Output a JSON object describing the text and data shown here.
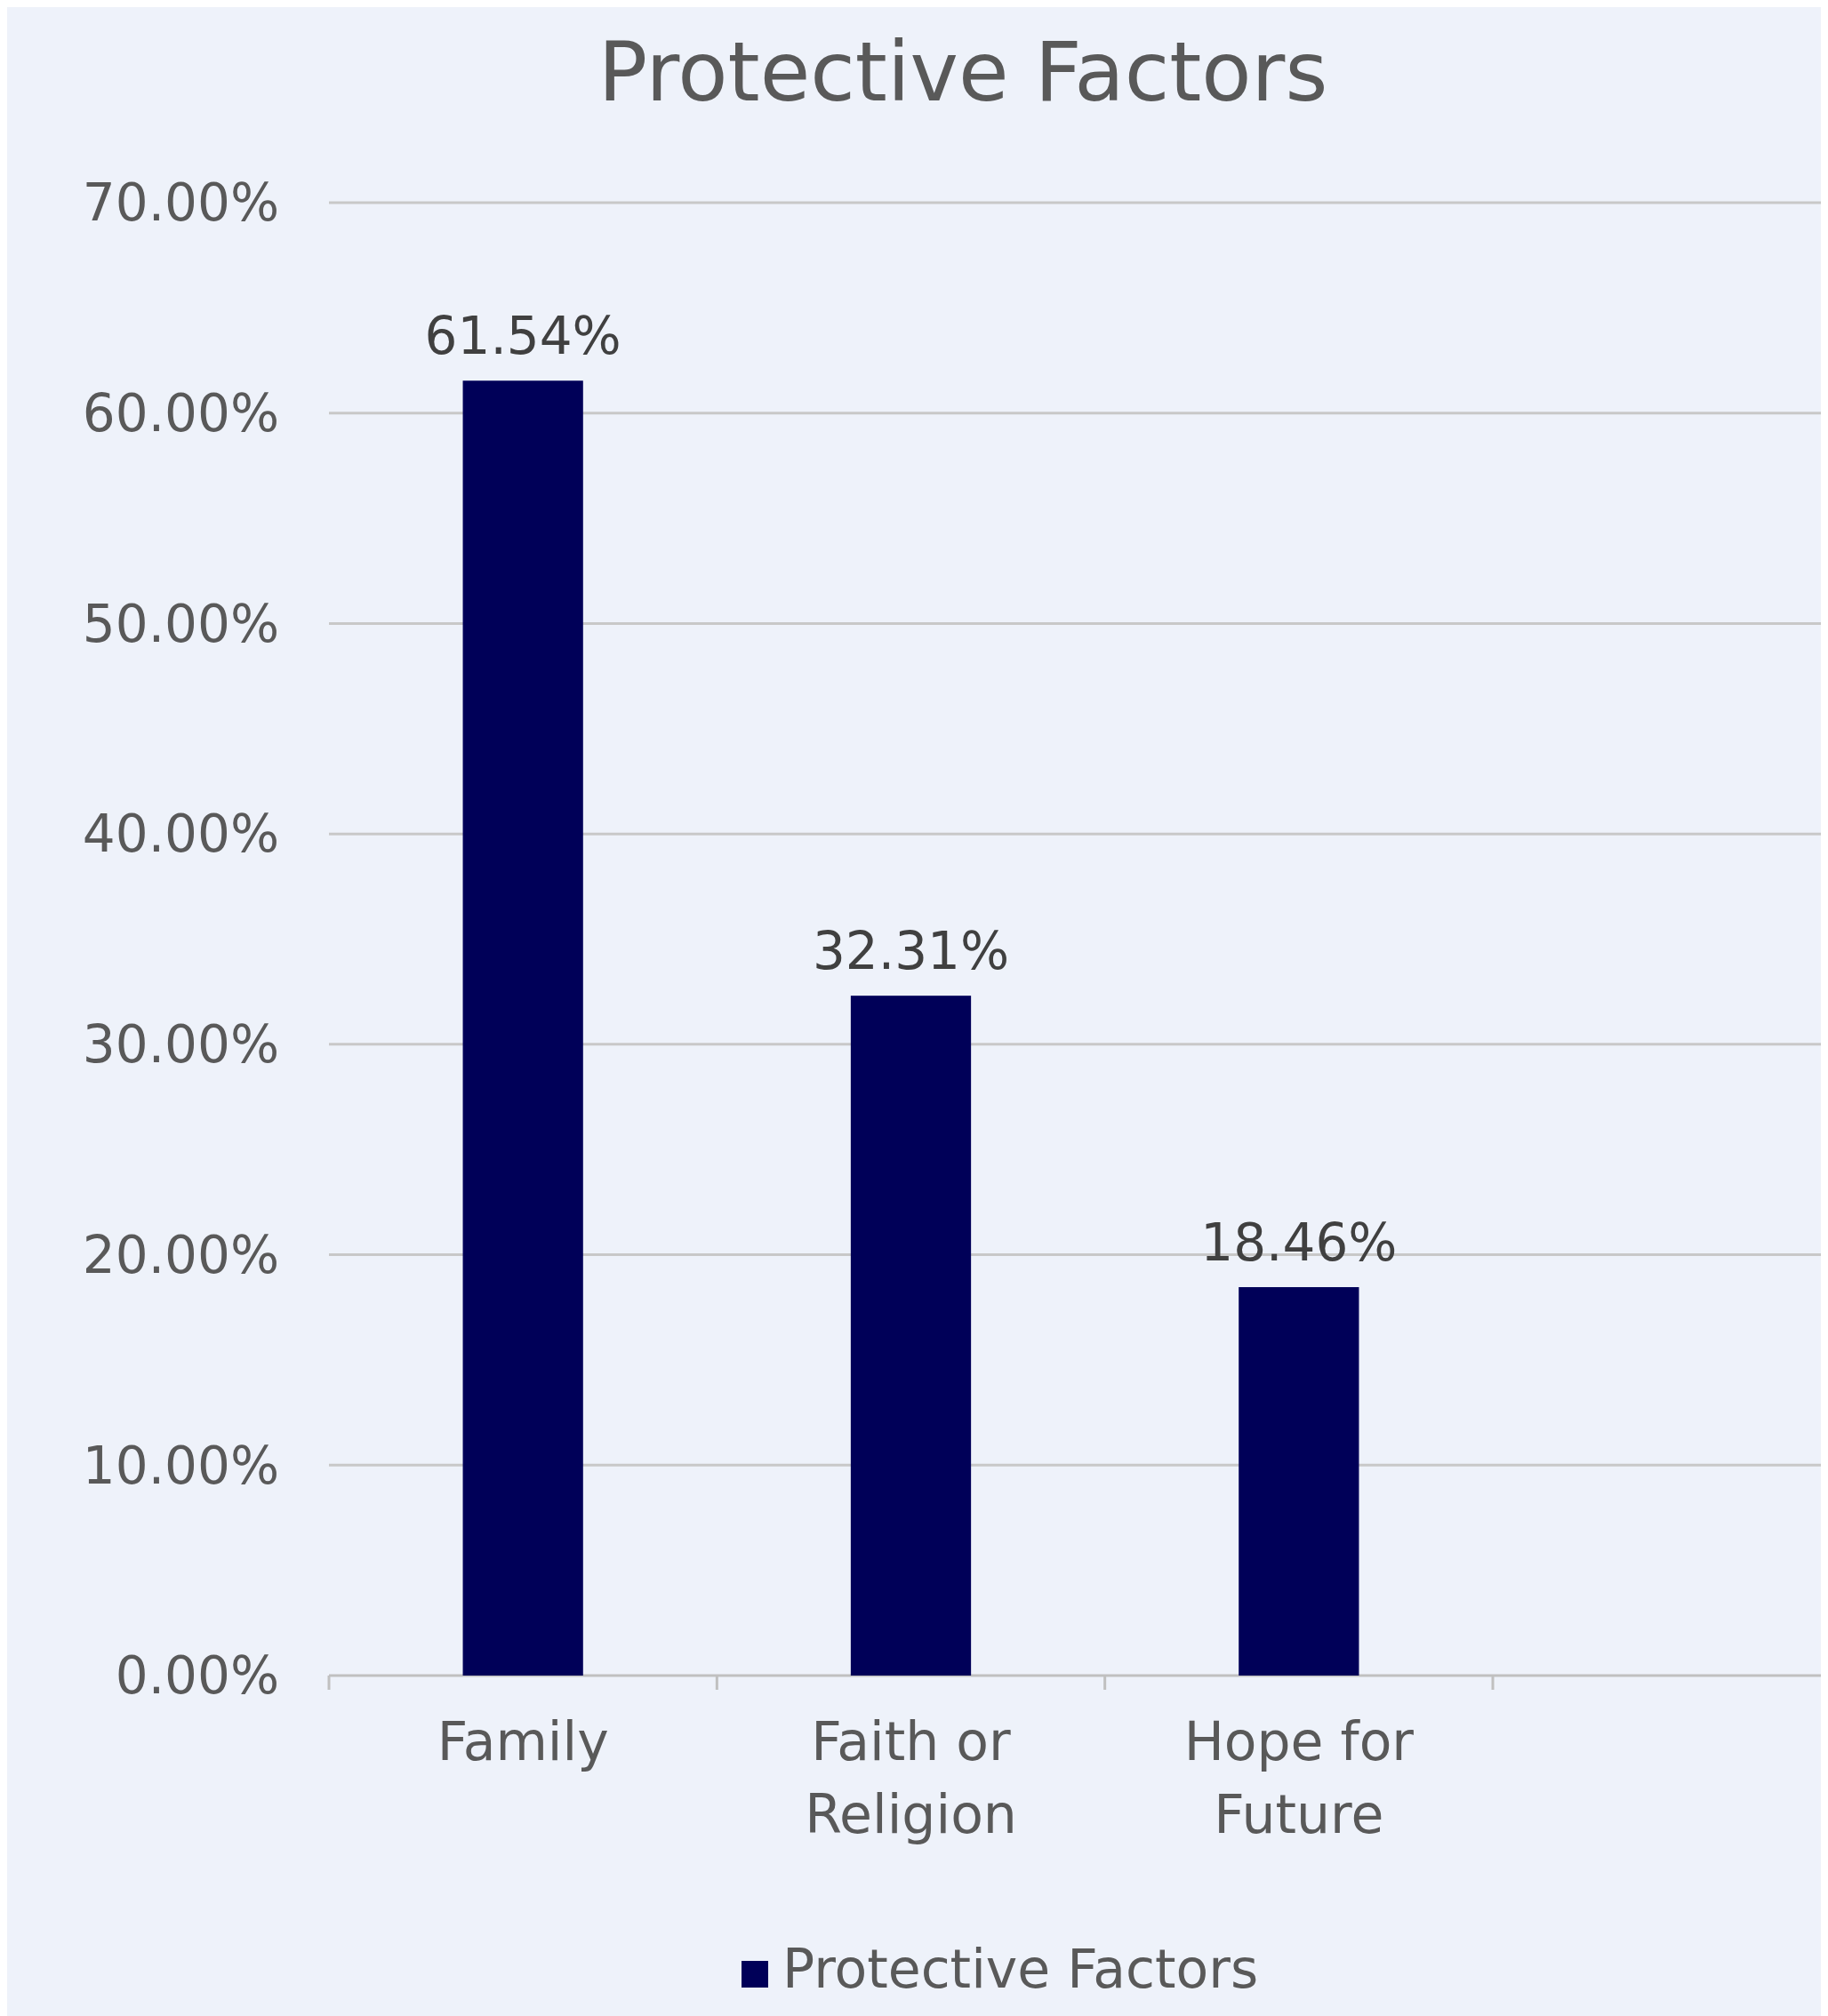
{
  "chart_data": {
    "type": "bar",
    "title": "Protective Factors",
    "categories": [
      "Family",
      "Faith or Religion",
      "Hope for Future"
    ],
    "series": [
      {
        "name": "Protective Factors",
        "color": "#000058",
        "values": [
          61.54,
          32.31,
          18.46
        ]
      }
    ],
    "value_labels": [
      "61.54%",
      "32.31%",
      "18.46%"
    ],
    "ylim": [
      0,
      70
    ],
    "yticks": [
      {
        "value": 0,
        "label": "0.00%"
      },
      {
        "value": 10,
        "label": "10.00%"
      },
      {
        "value": 20,
        "label": "20.00%"
      },
      {
        "value": 30,
        "label": "30.00%"
      },
      {
        "value": 40,
        "label": "40.00%"
      },
      {
        "value": 50,
        "label": "50.00%"
      },
      {
        "value": 60,
        "label": "60.00%"
      },
      {
        "value": 70,
        "label": "70.00%"
      }
    ],
    "grid": "y",
    "legend": "bottom"
  }
}
